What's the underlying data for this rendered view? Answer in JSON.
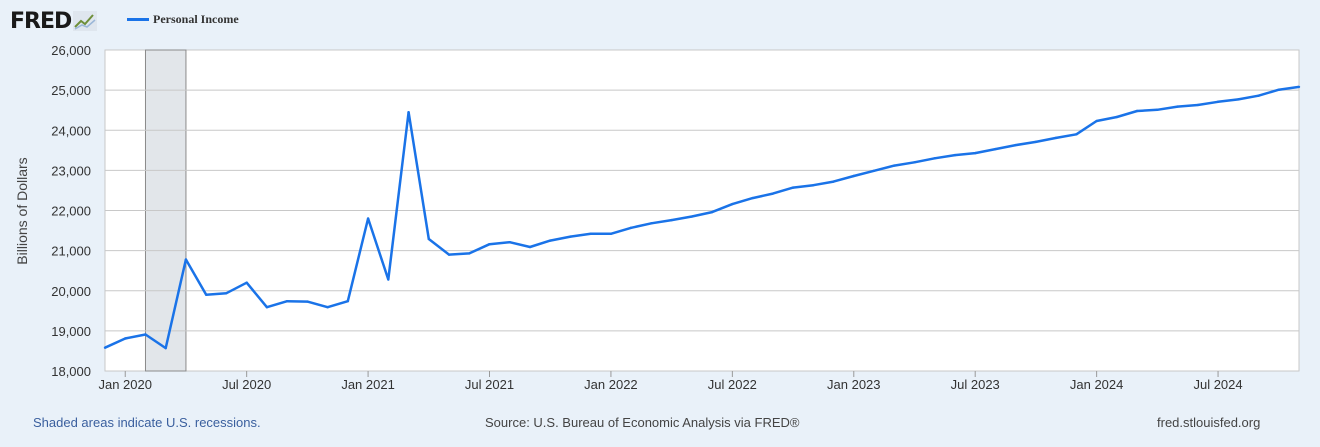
{
  "header": {
    "logo_text": "FRED",
    "logo_icon": "trend-graph-icon"
  },
  "legend": {
    "label": "Personal Income",
    "color": "#1a73e8"
  },
  "footer": {
    "recession_note": "Shaded areas indicate U.S. recessions.",
    "source": "Source: U.S. Bureau of Economic Analysis via FRED®",
    "url": "fred.stlouisfed.org"
  },
  "chart_data": {
    "type": "line",
    "title": "",
    "xlabel": "",
    "ylabel": "Billions of Dollars",
    "ylim": [
      18000,
      26000
    ],
    "yticks": [
      18000,
      19000,
      20000,
      21000,
      22000,
      23000,
      24000,
      25000,
      26000
    ],
    "ytick_labels": [
      "18,000",
      "19,000",
      "20,000",
      "21,000",
      "22,000",
      "23,000",
      "24,000",
      "25,000",
      "26,000"
    ],
    "xlim": [
      "2019-12",
      "2024-11"
    ],
    "xtick_labels": [
      "Jan 2020",
      "Jul 2020",
      "Jan 2021",
      "Jul 2021",
      "Jan 2022",
      "Jul 2022",
      "Jan 2023",
      "Jul 2023",
      "Jan 2024",
      "Jul 2024"
    ],
    "xticks": [
      "2020-01",
      "2020-07",
      "2021-01",
      "2021-07",
      "2022-01",
      "2022-07",
      "2023-01",
      "2023-07",
      "2024-01",
      "2024-07"
    ],
    "grid": true,
    "recession": {
      "start": "2020-02",
      "end": "2020-04",
      "fill": "#e2e6ea"
    },
    "series": [
      {
        "name": "Personal Income",
        "color": "#1a73e8",
        "x": [
          "2019-12",
          "2020-01",
          "2020-02",
          "2020-03",
          "2020-04",
          "2020-05",
          "2020-06",
          "2020-07",
          "2020-08",
          "2020-09",
          "2020-10",
          "2020-11",
          "2020-12",
          "2021-01",
          "2021-02",
          "2021-03",
          "2021-04",
          "2021-05",
          "2021-06",
          "2021-07",
          "2021-08",
          "2021-09",
          "2021-10",
          "2021-11",
          "2021-12",
          "2022-01",
          "2022-02",
          "2022-03",
          "2022-04",
          "2022-05",
          "2022-06",
          "2022-07",
          "2022-08",
          "2022-09",
          "2022-10",
          "2022-11",
          "2022-12",
          "2023-01",
          "2023-02",
          "2023-03",
          "2023-04",
          "2023-05",
          "2023-06",
          "2023-07",
          "2023-08",
          "2023-09",
          "2023-10",
          "2023-11",
          "2023-12",
          "2024-01",
          "2024-02",
          "2024-03",
          "2024-04",
          "2024-05",
          "2024-06",
          "2024-07",
          "2024-08",
          "2024-09",
          "2024-10",
          "2024-11"
        ],
        "values": [
          18580,
          18810,
          18910,
          18570,
          20780,
          19900,
          19940,
          20200,
          19590,
          19740,
          19730,
          19590,
          19740,
          21800,
          20280,
          24450,
          21290,
          20900,
          20930,
          21160,
          21210,
          21090,
          21250,
          21350,
          21420,
          21420,
          21570,
          21680,
          21760,
          21850,
          21960,
          22160,
          22310,
          22420,
          22570,
          22630,
          22720,
          22860,
          22990,
          23120,
          23200,
          23300,
          23380,
          23430,
          23530,
          23630,
          23710,
          23810,
          23900,
          24230,
          24330,
          24480,
          24510,
          24590,
          24630,
          24710,
          24770,
          24860,
          25010,
          25080
        ]
      }
    ]
  }
}
